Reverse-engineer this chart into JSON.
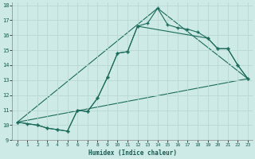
{
  "xlabel": "Humidex (Indice chaleur)",
  "background_color": "#ceeae6",
  "grid_color": "#b8d8d4",
  "line_color": "#1a6b5a",
  "xlim": [
    -0.5,
    23.5
  ],
  "ylim": [
    9,
    18.2
  ],
  "yticks": [
    9,
    10,
    11,
    12,
    13,
    14,
    15,
    16,
    17,
    18
  ],
  "xticks": [
    0,
    1,
    2,
    3,
    4,
    5,
    6,
    7,
    8,
    9,
    10,
    11,
    12,
    13,
    14,
    15,
    16,
    17,
    18,
    19,
    20,
    21,
    22,
    23
  ],
  "series1_x": [
    0,
    1,
    2,
    3,
    4,
    5,
    6,
    7,
    8,
    9,
    10,
    11,
    12,
    13,
    14,
    15,
    16,
    17,
    18,
    19,
    20,
    21,
    22,
    23
  ],
  "series1_y": [
    10.2,
    10.1,
    10.0,
    9.8,
    9.7,
    9.6,
    11.0,
    10.9,
    11.8,
    13.2,
    14.8,
    14.9,
    16.6,
    16.8,
    17.8,
    16.7,
    16.5,
    16.4,
    16.2,
    15.8,
    15.1,
    15.1,
    14.0,
    13.1
  ],
  "series2_x": [
    0,
    2,
    3,
    4,
    5,
    6,
    7,
    8,
    9,
    10,
    11,
    12,
    19,
    20,
    21,
    22,
    23
  ],
  "series2_y": [
    10.2,
    10.0,
    9.8,
    9.7,
    9.6,
    11.0,
    10.9,
    11.8,
    13.2,
    14.8,
    14.9,
    16.6,
    15.8,
    15.1,
    15.1,
    14.0,
    13.1
  ],
  "series3_x": [
    0,
    23
  ],
  "series3_y": [
    10.2,
    13.1
  ],
  "series4_x": [
    0,
    14,
    23
  ],
  "series4_y": [
    10.2,
    17.8,
    13.1
  ]
}
